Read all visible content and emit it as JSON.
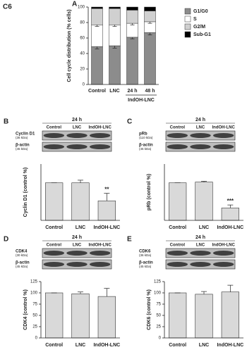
{
  "figure_label": "C6",
  "chart_data": [
    {
      "type": "bar",
      "stacked": true,
      "panel": "A",
      "ylabel": "Cell cycle distribution (% cells)",
      "categories": [
        "Control",
        "LNC",
        "24 h",
        "48 h"
      ],
      "category_groups": [
        null,
        null,
        "IndOH-LNC",
        "IndOH-LNC"
      ],
      "series": [
        {
          "name": "G1/G0",
          "color": "#8c8c8c",
          "values": [
            49,
            50,
            61,
            67
          ],
          "errors": [
            3,
            3,
            2,
            3
          ]
        },
        {
          "name": "S",
          "color": "#ffffff",
          "values": [
            28,
            27,
            18,
            14
          ],
          "errors": [
            2,
            2,
            2,
            2
          ]
        },
        {
          "name": "G2/M",
          "color": "#d0d0d0",
          "values": [
            21,
            21,
            17,
            14
          ]
        },
        {
          "name": "Sub-G1",
          "color": "#000000",
          "values": [
            2,
            2,
            4,
            5
          ]
        }
      ],
      "ylim": [
        0,
        100
      ],
      "yticks": [
        0,
        20,
        40,
        60,
        80,
        100
      ]
    },
    {
      "type": "bar",
      "panel": "B",
      "blot": {
        "time": "24 h",
        "lanes": [
          "Control",
          "LNC",
          "IndOH-LNC"
        ],
        "proteins": [
          {
            "name": "Cyclin D1",
            "size": "(36 kDa)"
          },
          {
            "name": "β-actin",
            "size": "(45 kDa)"
          }
        ]
      },
      "ylabel": "Cyclin D1 (control %)",
      "categories": [
        "Control",
        "LNC",
        "IndOH-LNC"
      ],
      "values": [
        100,
        100,
        52
      ],
      "errors": [
        0,
        7,
        20
      ],
      "value_annotations": [
        null,
        null,
        "**"
      ],
      "color": "#d9d9d9",
      "ylim": [
        0,
        150
      ]
    },
    {
      "type": "bar",
      "panel": "C",
      "blot": {
        "time": "24 h",
        "lanes": [
          "Control",
          "LNC",
          "IndOH-LNC"
        ],
        "proteins": [
          {
            "name": "pRb",
            "size": "(110 kDa)"
          },
          {
            "name": "β-actin",
            "size": "(45 kDa)"
          }
        ]
      },
      "ylabel": "pRb (control %)",
      "categories": [
        "Control",
        "LNC",
        "IndOH-LNC"
      ],
      "values": [
        100,
        102,
        33
      ],
      "errors": [
        0,
        2,
        8
      ],
      "value_annotations": [
        null,
        null,
        "***"
      ],
      "color": "#d9d9d9",
      "ylim": [
        0,
        150
      ]
    },
    {
      "type": "bar",
      "panel": "D",
      "blot": {
        "time": "24 h",
        "lanes": [
          "Control",
          "LNC",
          "IndOH-LNC"
        ],
        "proteins": [
          {
            "name": "CDK4",
            "size": "(30 kDa)"
          },
          {
            "name": "β-actin",
            "size": "(45 kDa)"
          }
        ]
      },
      "ylabel": "CDK4 (control %)",
      "categories": [
        "Control",
        "LNC",
        "IndOH-LNC"
      ],
      "values": [
        100,
        98,
        92
      ],
      "errors": [
        0,
        4,
        18
      ],
      "color": "#d9d9d9",
      "ylim": [
        0,
        125
      ],
      "yticks": [
        0,
        25,
        50,
        75,
        100,
        125
      ]
    },
    {
      "type": "bar",
      "panel": "E",
      "blot": {
        "time": "24 h",
        "lanes": [
          "Control",
          "LNC",
          "IndOH-LNC"
        ],
        "proteins": [
          {
            "name": "CDK6",
            "size": "(36 kDa)"
          },
          {
            "name": "β-actin",
            "size": "(45 kDa)"
          }
        ]
      },
      "ylabel": "CDK6 (control %)",
      "categories": [
        "Control",
        "LNC",
        "IndOH-LNC"
      ],
      "values": [
        100,
        97,
        102
      ],
      "errors": [
        0,
        6,
        15
      ],
      "color": "#d9d9d9",
      "ylim": [
        0,
        125
      ],
      "yticks": [
        0,
        25,
        50,
        75,
        100,
        125
      ]
    }
  ]
}
